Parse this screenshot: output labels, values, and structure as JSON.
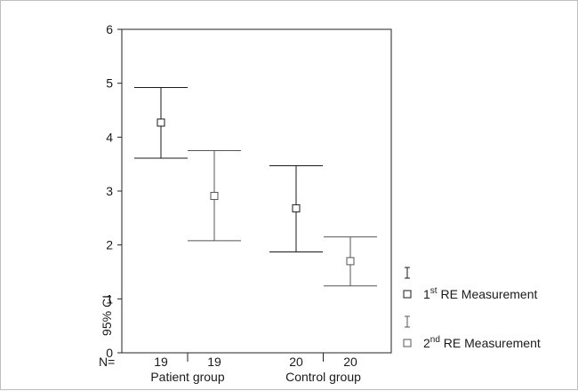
{
  "chart_data": {
    "type": "errorbar",
    "ylabel": "95% CI",
    "ylim": [
      0,
      6
    ],
    "yticks": [
      0,
      1,
      2,
      3,
      4,
      5,
      6
    ],
    "n_label": "N=",
    "groups": [
      {
        "label": "Patient group",
        "columns": [
          0,
          1
        ]
      },
      {
        "label": "Control group",
        "columns": [
          2,
          3
        ]
      }
    ],
    "columns": [
      {
        "n": "19",
        "series": 0,
        "mean": 4.27,
        "lower": 3.61,
        "upper": 4.92
      },
      {
        "n": "19",
        "series": 1,
        "mean": 2.91,
        "lower": 2.08,
        "upper": 3.75
      },
      {
        "n": "20",
        "series": 0,
        "mean": 2.68,
        "lower": 1.87,
        "upper": 3.47
      },
      {
        "n": "20",
        "series": 1,
        "mean": 1.7,
        "lower": 1.24,
        "upper": 2.15
      }
    ],
    "series": [
      {
        "legend_prefix": "1",
        "legend_sup": "st",
        "legend_suffix": " RE Measurement",
        "color": "#1a1a1a"
      },
      {
        "legend_prefix": "2",
        "legend_sup": "nd",
        "legend_suffix": " RE Measurement",
        "color": "#555555"
      }
    ],
    "grid": false,
    "legend_position": "bottom-right"
  }
}
